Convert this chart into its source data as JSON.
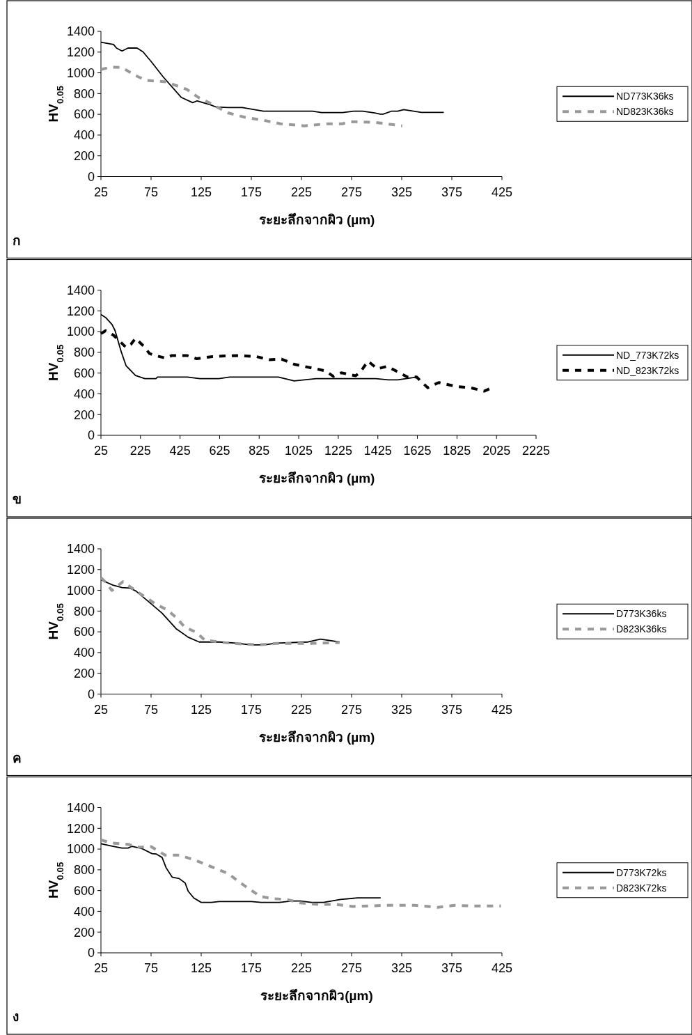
{
  "chart_data": [
    {
      "type": "line",
      "ylabel": "HV$_{0.05}$",
      "xlabel": "ระยะลึกจากผิว (µm)",
      "annotations": [
        "ก"
      ],
      "xlim": [
        25,
        425
      ],
      "xticks": [
        25,
        75,
        125,
        175,
        225,
        275,
        325,
        375,
        425
      ],
      "ylim": [
        0,
        1400
      ],
      "yticks": [
        0,
        200,
        400,
        600,
        800,
        1000,
        1200,
        1400
      ],
      "legend": "right",
      "series": [
        {
          "name": "ND773K36ks",
          "color": "#000000",
          "line_style": "solid",
          "x": [
            25,
            37.6,
            40.5,
            46,
            52,
            61,
            67,
            75.6,
            87,
            105,
            116.5,
            121,
            134,
            140,
            151.6,
            166,
            187,
            236,
            245,
            266,
            277,
            286,
            298,
            303.6,
            306.6,
            315,
            321,
            327,
            344.6,
            367
          ],
          "values": [
            1295,
            1273,
            1239,
            1210,
            1239,
            1239,
            1202,
            1103,
            962,
            764,
            713,
            730,
            693,
            670,
            665,
            665,
            631,
            631,
            617,
            617,
            631,
            631,
            614,
            602,
            602,
            631,
            631,
            645,
            619,
            619
          ]
        },
        {
          "name": "ND823K36ks",
          "color": "#999999",
          "line_style": "dashed",
          "x": [
            25,
            34.6,
            46,
            58,
            69.7,
            90,
            110.7,
            122,
            134,
            151.6,
            169,
            187,
            204,
            227.6,
            251,
            265.6,
            274,
            298,
            309.5,
            325.6
          ],
          "values": [
            1032,
            1055,
            1052,
            981,
            928,
            913,
            840,
            764,
            707,
            614,
            571,
            543,
            509,
            489,
            509,
            509,
            529,
            523,
            509,
            489
          ]
        }
      ]
    },
    {
      "type": "line",
      "ylabel": "HV$_{0.05}$",
      "xlabel": "ระยะลึกจากผิว (µm)",
      "annotations": [
        "ข"
      ],
      "xlim": [
        25,
        2225
      ],
      "xticks": [
        25,
        225,
        425,
        625,
        825,
        1025,
        1225,
        1425,
        1625,
        1825,
        2025,
        2225
      ],
      "ylim": [
        0,
        1400
      ],
      "yticks": [
        0,
        200,
        400,
        600,
        800,
        1000,
        1200,
        1400
      ],
      "legend": "right",
      "series": [
        {
          "name": "ND_773K72ks",
          "color": "#000000",
          "line_style": "solid",
          "x": [
            25,
            49,
            81,
            96.5,
            128,
            152,
            200,
            247,
            303,
            311,
            462,
            525,
            621,
            676,
            922,
            1002,
            1113,
            1415,
            1478,
            1526,
            1621
          ],
          "values": [
            1165,
            1135,
            1068,
            1009,
            803,
            671,
            576,
            547,
            547,
            562,
            562,
            547,
            547,
            562,
            562,
            524,
            547,
            547,
            535,
            535,
            562
          ]
        },
        {
          "name": "ND_823K72ks",
          "color": "#000000",
          "line_style": "dashed",
          "x": [
            25,
            49,
            88.5,
            120,
            152,
            176,
            200,
            239.5,
            271,
            303,
            351,
            382,
            462,
            509.5,
            589,
            652,
            716,
            811,
            875,
            938,
            1002,
            1097,
            1161,
            1200,
            1240,
            1312,
            1335,
            1375,
            1423,
            1471,
            1526,
            1574,
            1621,
            1677,
            1733,
            1820,
            1892,
            1963,
            2003
          ],
          "values": [
            979,
            1009,
            965,
            906,
            847,
            876,
            935,
            862,
            788,
            768,
            744,
            768,
            768,
            738,
            759,
            765,
            768,
            759,
            729,
            735,
            685,
            647,
            621,
            568,
            603,
            574,
            606,
            715,
            641,
            665,
            612,
            562,
            562,
            459,
            509,
            471,
            459,
            426,
            459
          ]
        }
      ]
    },
    {
      "type": "line",
      "ylabel": "HV$_{0.05}$",
      "xlabel": "ระยะลึกจากผิว (µm)",
      "annotations": [
        "ค"
      ],
      "xlim": [
        25,
        425
      ],
      "xticks": [
        25,
        75,
        125,
        175,
        225,
        275,
        325,
        375,
        425
      ],
      "ylim": [
        0,
        1400
      ],
      "yticks": [
        0,
        200,
        400,
        600,
        800,
        1000,
        1200,
        1400
      ],
      "legend": "right",
      "series": [
        {
          "name": "D773K36ks",
          "color": "#000000",
          "line_style": "solid",
          "x": [
            25,
            37,
            46,
            54,
            60,
            74,
            86,
            100,
            112,
            123,
            143,
            160,
            174,
            188,
            200,
            231.6,
            244,
            263
          ],
          "values": [
            1101,
            1050,
            1027,
            1021,
            993,
            879,
            780,
            630,
            548,
            502,
            502,
            491,
            474,
            474,
            491,
            502,
            530,
            502
          ]
        },
        {
          "name": "D823K36ks",
          "color": "#999999",
          "line_style": "dashed",
          "x": [
            25,
            29,
            36,
            40.6,
            47,
            56,
            69,
            80,
            91.6,
            100,
            108.7,
            120,
            128.7,
            148.7,
            166,
            183,
            200,
            231.6,
            263
          ],
          "values": [
            1121,
            1084,
            999,
            1035,
            1084,
            1021,
            936,
            865,
            809,
            738,
            644,
            596,
            519,
            496,
            482,
            474,
            488,
            488,
            496
          ]
        }
      ]
    },
    {
      "type": "line",
      "ylabel": "HV$_{0.05}$",
      "xlabel": "ระยะลึกจากผิว(µm)",
      "annotations": [
        "ง"
      ],
      "xlim": [
        25,
        425
      ],
      "xticks": [
        25,
        75,
        125,
        175,
        225,
        275,
        325,
        375,
        425
      ],
      "ylim": [
        0,
        1400
      ],
      "yticks": [
        0,
        200,
        400,
        600,
        800,
        1000,
        1200,
        1400
      ],
      "legend": "right",
      "series": [
        {
          "name": "D773K72ks",
          "color": "#000000",
          "line_style": "solid",
          "x": [
            25,
            34.5,
            46,
            52,
            56,
            66,
            76,
            80,
            86,
            90,
            96,
            103,
            109,
            112,
            117.6,
            125,
            135,
            143,
            175,
            185,
            203,
            215,
            224,
            235,
            247,
            264,
            281,
            304
          ],
          "values": [
            1052,
            1032,
            1010,
            1010,
            1027,
            1004,
            956,
            953,
            919,
            820,
            730,
            716,
            673,
            594,
            529,
            486,
            486,
            495,
            495,
            486,
            486,
            500,
            500,
            486,
            486,
            515,
            529,
            529
          ]
        },
        {
          "name": "D823K72ks",
          "color": "#999999",
          "line_style": "dashed",
          "x": [
            25,
            34.5,
            52,
            63,
            75,
            80,
            89,
            103,
            115,
            123,
            137.7,
            152,
            163.5,
            172,
            183.6,
            195,
            210,
            224,
            241.6,
            258.6,
            276,
            292.5,
            310,
            338,
            361,
            378,
            395,
            424
          ],
          "values": [
            1089,
            1060,
            1046,
            1018,
            1024,
            995,
            942,
            942,
            905,
            877,
            820,
            764,
            679,
            622,
            546,
            523,
            515,
            481,
            467,
            467,
            447,
            452,
            458,
            458,
            438,
            458,
            452,
            452
          ]
        }
      ]
    }
  ]
}
